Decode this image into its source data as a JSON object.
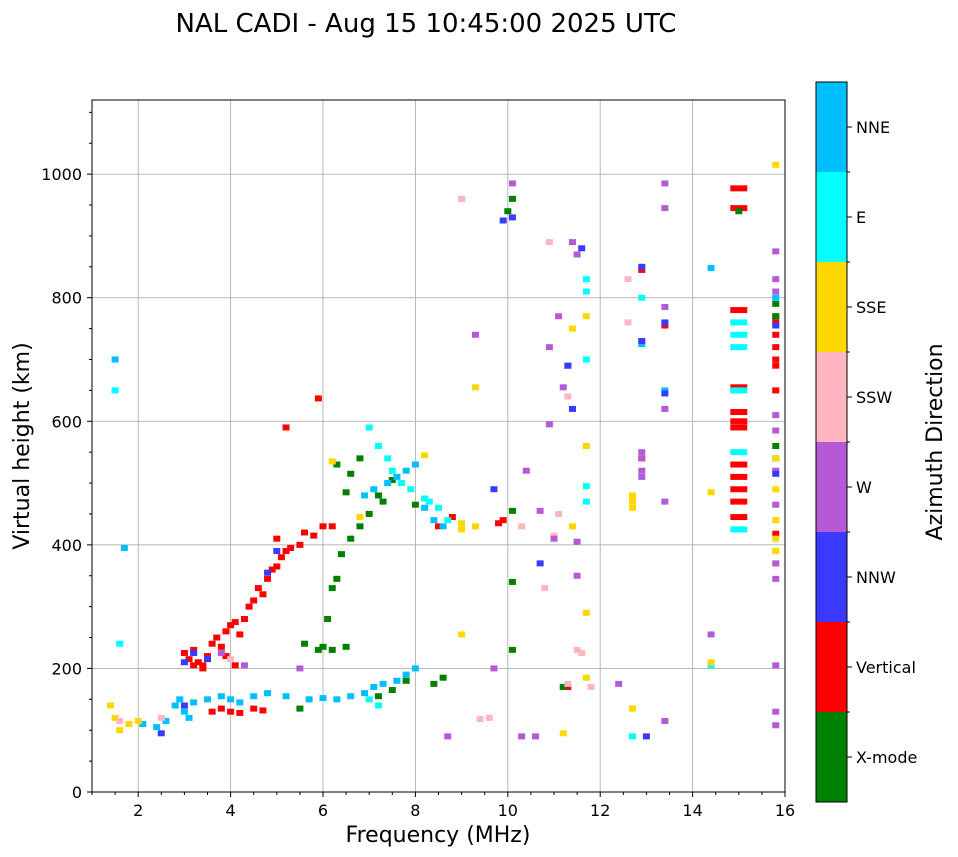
{
  "chart_data": {
    "type": "scatter",
    "title": "NAL CADI - Aug 15 10:45:00 2025 UTC",
    "xlabel": "Frequency (MHz)",
    "ylabel": "Virtual height (km)",
    "xlim": [
      1,
      16
    ],
    "ylim": [
      0,
      1120
    ],
    "xticks": [
      2,
      4,
      6,
      8,
      10,
      12,
      14,
      16
    ],
    "yticks": [
      0,
      200,
      400,
      600,
      800,
      1000
    ],
    "grid": true,
    "colorbar": {
      "title": "Azimuth Direction",
      "categories": [
        {
          "name": "X-mode",
          "color": "#008000"
        },
        {
          "name": "Vertical",
          "color": "#ff0000"
        },
        {
          "name": "NNW",
          "color": "#3a3aff"
        },
        {
          "name": "W",
          "color": "#b55ad6"
        },
        {
          "name": "SSW",
          "color": "#ffb6c1"
        },
        {
          "name": "SSE",
          "color": "#ffd700"
        },
        {
          "name": "E",
          "color": "#00ffff"
        },
        {
          "name": "NNE",
          "color": "#00bfff"
        }
      ]
    },
    "series": [
      {
        "name": "Vertical",
        "points": [
          [
            3.0,
            225
          ],
          [
            3.1,
            215
          ],
          [
            3.2,
            230
          ],
          [
            3.3,
            210
          ],
          [
            3.4,
            205
          ],
          [
            3.5,
            220
          ],
          [
            3.6,
            240
          ],
          [
            3.7,
            250
          ],
          [
            3.8,
            235
          ],
          [
            3.9,
            260
          ],
          [
            4.0,
            270
          ],
          [
            4.1,
            275
          ],
          [
            4.2,
            255
          ],
          [
            4.3,
            280
          ],
          [
            4.4,
            300
          ],
          [
            4.5,
            310
          ],
          [
            4.6,
            330
          ],
          [
            4.7,
            320
          ],
          [
            4.8,
            345
          ],
          [
            4.9,
            360
          ],
          [
            5.0,
            365
          ],
          [
            5.1,
            380
          ],
          [
            5.2,
            390
          ],
          [
            5.3,
            395
          ],
          [
            5.5,
            400
          ],
          [
            5.0,
            410
          ],
          [
            5.6,
            420
          ],
          [
            3.6,
            130
          ],
          [
            3.8,
            135
          ],
          [
            4.0,
            130
          ],
          [
            4.2,
            128
          ],
          [
            4.5,
            135
          ],
          [
            4.7,
            132
          ],
          [
            3.2,
            205
          ],
          [
            3.4,
            200
          ],
          [
            3.9,
            220
          ],
          [
            4.1,
            205
          ],
          [
            5.2,
            590
          ],
          [
            5.9,
            637
          ],
          [
            6.2,
            430
          ],
          [
            9.8,
            435
          ],
          [
            9.9,
            440
          ],
          [
            11.3,
            170
          ],
          [
            15.0,
            977
          ],
          [
            15.0,
            945
          ],
          [
            15.0,
            780
          ],
          [
            15.0,
            655
          ],
          [
            15.0,
            615
          ],
          [
            15.0,
            600
          ],
          [
            15.0,
            590
          ],
          [
            15.0,
            530
          ],
          [
            15.0,
            510
          ],
          [
            15.0,
            490
          ],
          [
            15.0,
            470
          ],
          [
            15.0,
            445
          ],
          [
            15.8,
            770
          ],
          [
            15.8,
            760
          ],
          [
            15.8,
            740
          ],
          [
            15.8,
            720
          ],
          [
            15.8,
            700
          ],
          [
            15.8,
            690
          ],
          [
            15.8,
            650
          ],
          [
            15.8,
            418
          ],
          [
            12.9,
            540
          ],
          [
            12.9,
            845
          ],
          [
            13.4,
            755
          ],
          [
            5.8,
            415
          ],
          [
            6.0,
            430
          ],
          [
            8.5,
            430
          ],
          [
            8.8,
            445
          ]
        ]
      },
      {
        "name": "X-mode",
        "points": [
          [
            5.6,
            240
          ],
          [
            5.9,
            230
          ],
          [
            6.1,
            280
          ],
          [
            6.2,
            330
          ],
          [
            6.3,
            345
          ],
          [
            6.4,
            385
          ],
          [
            6.6,
            410
          ],
          [
            6.8,
            430
          ],
          [
            7.0,
            450
          ],
          [
            7.3,
            470
          ],
          [
            7.5,
            505
          ],
          [
            6.2,
            230
          ],
          [
            6.5,
            235
          ],
          [
            6.0,
            235
          ],
          [
            7.2,
            155
          ],
          [
            7.5,
            165
          ],
          [
            7.8,
            180
          ],
          [
            8.4,
            175
          ],
          [
            8.6,
            185
          ],
          [
            5.5,
            135
          ],
          [
            6.3,
            530
          ],
          [
            6.5,
            485
          ],
          [
            6.6,
            515
          ],
          [
            10.0,
            940
          ],
          [
            10.1,
            960
          ],
          [
            10.1,
            340
          ],
          [
            10.1,
            230
          ],
          [
            10.1,
            455
          ],
          [
            11.2,
            170
          ],
          [
            15.0,
            940
          ],
          [
            15.8,
            770
          ],
          [
            15.8,
            790
          ],
          [
            15.8,
            540
          ],
          [
            15.8,
            560
          ],
          [
            8.0,
            465
          ],
          [
            7.2,
            480
          ],
          [
            6.8,
            540
          ]
        ]
      },
      {
        "name": "NNE",
        "points": [
          [
            1.5,
            700
          ],
          [
            2.8,
            140
          ],
          [
            2.9,
            150
          ],
          [
            3.0,
            130
          ],
          [
            3.1,
            120
          ],
          [
            3.2,
            145
          ],
          [
            3.5,
            150
          ],
          [
            3.8,
            155
          ],
          [
            4.0,
            150
          ],
          [
            4.2,
            145
          ],
          [
            4.5,
            155
          ],
          [
            4.8,
            160
          ],
          [
            5.2,
            155
          ],
          [
            5.7,
            150
          ],
          [
            6.0,
            152
          ],
          [
            6.3,
            150
          ],
          [
            6.6,
            155
          ],
          [
            6.9,
            160
          ],
          [
            7.1,
            170
          ],
          [
            7.3,
            175
          ],
          [
            7.6,
            180
          ],
          [
            7.8,
            190
          ],
          [
            8.0,
            200
          ],
          [
            6.9,
            480
          ],
          [
            7.1,
            490
          ],
          [
            7.4,
            500
          ],
          [
            7.6,
            510
          ],
          [
            7.8,
            520
          ],
          [
            8.0,
            530
          ],
          [
            8.2,
            460
          ],
          [
            8.4,
            440
          ],
          [
            8.6,
            430
          ],
          [
            12.9,
            725
          ],
          [
            15.0,
            425
          ],
          [
            15.8,
            800
          ],
          [
            2.1,
            110
          ],
          [
            2.4,
            105
          ],
          [
            2.6,
            115
          ],
          [
            1.7,
            395
          ],
          [
            14.4,
            848
          ],
          [
            13.4,
            650
          ]
        ]
      },
      {
        "name": "E",
        "points": [
          [
            7.0,
            590
          ],
          [
            7.2,
            560
          ],
          [
            7.4,
            540
          ],
          [
            7.5,
            520
          ],
          [
            7.7,
            500
          ],
          [
            7.9,
            490
          ],
          [
            8.2,
            475
          ],
          [
            8.3,
            470
          ],
          [
            8.5,
            460
          ],
          [
            8.7,
            440
          ],
          [
            15.0,
            760
          ],
          [
            15.0,
            740
          ],
          [
            15.0,
            720
          ],
          [
            15.0,
            650
          ],
          [
            15.0,
            550
          ],
          [
            15.0,
            425
          ],
          [
            11.7,
            830
          ],
          [
            11.7,
            810
          ],
          [
            11.7,
            700
          ],
          [
            11.7,
            495
          ],
          [
            11.7,
            470
          ],
          [
            7.0,
            150
          ],
          [
            7.2,
            140
          ],
          [
            1.5,
            650
          ],
          [
            1.6,
            240
          ],
          [
            9.0,
            960
          ],
          [
            12.7,
            90
          ],
          [
            14.4,
            205
          ],
          [
            12.9,
            800
          ]
        ]
      },
      {
        "name": "SSE",
        "points": [
          [
            1.4,
            140
          ],
          [
            1.5,
            120
          ],
          [
            1.6,
            100
          ],
          [
            1.8,
            110
          ],
          [
            2.0,
            115
          ],
          [
            12.7,
            480
          ],
          [
            12.7,
            470
          ],
          [
            12.7,
            460
          ],
          [
            15.8,
            1015
          ],
          [
            15.8,
            540
          ],
          [
            15.8,
            490
          ],
          [
            15.8,
            440
          ],
          [
            15.8,
            410
          ],
          [
            15.8,
            390
          ],
          [
            15.8,
            370
          ],
          [
            11.7,
            770
          ],
          [
            11.7,
            560
          ],
          [
            11.7,
            290
          ],
          [
            11.7,
            185
          ],
          [
            11.4,
            750
          ],
          [
            11.4,
            430
          ],
          [
            9.0,
            435
          ],
          [
            9.0,
            425
          ],
          [
            9.0,
            255
          ],
          [
            9.3,
            430
          ],
          [
            9.3,
            655
          ],
          [
            12.7,
            135
          ],
          [
            11.2,
            95
          ],
          [
            8.2,
            545
          ],
          [
            14.4,
            485
          ],
          [
            14.4,
            210
          ],
          [
            6.2,
            535
          ],
          [
            6.8,
            445
          ]
        ]
      },
      {
        "name": "SSW",
        "points": [
          [
            9.0,
            960
          ],
          [
            10.9,
            890
          ],
          [
            12.6,
            830
          ],
          [
            12.6,
            760
          ],
          [
            11.3,
            640
          ],
          [
            10.8,
            330
          ],
          [
            10.3,
            430
          ],
          [
            11.0,
            415
          ],
          [
            11.1,
            450
          ],
          [
            11.5,
            230
          ],
          [
            11.6,
            225
          ],
          [
            9.6,
            120
          ],
          [
            9.4,
            118
          ],
          [
            11.3,
            175
          ],
          [
            11.8,
            170
          ],
          [
            1.6,
            115
          ],
          [
            2.5,
            120
          ],
          [
            4.0,
            215
          ]
        ]
      },
      {
        "name": "W",
        "points": [
          [
            10.1,
            985
          ],
          [
            10.9,
            720
          ],
          [
            11.1,
            770
          ],
          [
            11.3,
            690
          ],
          [
            11.2,
            655
          ],
          [
            11.4,
            890
          ],
          [
            11.5,
            870
          ],
          [
            10.9,
            595
          ],
          [
            11.0,
            410
          ],
          [
            11.5,
            405
          ],
          [
            11.5,
            350
          ],
          [
            12.9,
            540
          ],
          [
            12.9,
            520
          ],
          [
            12.9,
            510
          ],
          [
            12.9,
            550
          ],
          [
            13.4,
            985
          ],
          [
            13.4,
            945
          ],
          [
            13.4,
            785
          ],
          [
            13.4,
            620
          ],
          [
            13.4,
            470
          ],
          [
            13.4,
            115
          ],
          [
            14.4,
            255
          ],
          [
            15.8,
            875
          ],
          [
            15.8,
            830
          ],
          [
            15.8,
            810
          ],
          [
            15.8,
            610
          ],
          [
            15.8,
            585
          ],
          [
            15.8,
            520
          ],
          [
            15.8,
            465
          ],
          [
            15.8,
            370
          ],
          [
            15.8,
            345
          ],
          [
            15.8,
            205
          ],
          [
            15.8,
            130
          ],
          [
            15.8,
            108
          ],
          [
            12.4,
            175
          ],
          [
            8.7,
            90
          ],
          [
            10.3,
            90
          ],
          [
            10.6,
            90
          ],
          [
            9.3,
            740
          ],
          [
            10.4,
            520
          ],
          [
            10.7,
            455
          ],
          [
            3.8,
            225
          ],
          [
            4.3,
            205
          ],
          [
            5.5,
            200
          ],
          [
            9.7,
            200
          ]
        ]
      },
      {
        "name": "NNW",
        "points": [
          [
            3.0,
            210
          ],
          [
            3.2,
            225
          ],
          [
            3.5,
            215
          ],
          [
            4.8,
            355
          ],
          [
            5.0,
            390
          ],
          [
            10.1,
            930
          ],
          [
            9.9,
            925
          ],
          [
            10.7,
            370
          ],
          [
            11.3,
            690
          ],
          [
            11.4,
            620
          ],
          [
            12.9,
            730
          ],
          [
            12.9,
            850
          ],
          [
            13.4,
            760
          ],
          [
            13.4,
            645
          ],
          [
            15.8,
            755
          ],
          [
            15.8,
            515
          ],
          [
            13.0,
            90
          ],
          [
            2.5,
            95
          ],
          [
            3.0,
            140
          ],
          [
            9.7,
            490
          ],
          [
            11.6,
            880
          ]
        ]
      }
    ]
  }
}
